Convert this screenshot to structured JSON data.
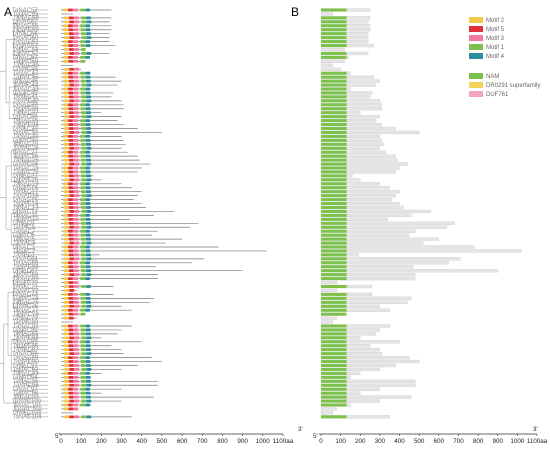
{
  "panels": {
    "a": "A",
    "b": "B"
  },
  "axis": {
    "ticks": [
      0,
      100,
      200,
      300,
      400,
      500,
      600,
      700,
      800,
      900,
      1000,
      1100
    ],
    "unit": "aa",
    "start_label": "5'",
    "end_label": "3'"
  },
  "legend_motifs": [
    {
      "name": "Motif 2",
      "color": "#f5c84a"
    },
    {
      "name": "Motif 5",
      "color": "#e0303d"
    },
    {
      "name": "Motif 3",
      "color": "#f27aa0"
    },
    {
      "name": "Motif 1",
      "color": "#7cc24a"
    },
    {
      "name": "Motif 4",
      "color": "#2c8fa0"
    }
  ],
  "legend_domains": [
    {
      "name": "NAM",
      "color": "#7cc24a"
    },
    {
      "name": "DR0291 superfamily",
      "color": "#f5d35a"
    },
    {
      "name": "DUF761",
      "color": "#f6a2c2"
    }
  ],
  "genes": [
    "TaNAC57",
    "TaNAC63",
    "TaNAC58",
    "TaNAC62",
    "TaNAC55",
    "TaNAC59",
    "TaNAC56",
    "TaNAC60",
    "TaNAC61",
    "TaNAC53",
    "TaNAC54",
    "TaNAC52",
    "TaNAC51",
    "TaNAC50",
    "TaNAC49",
    "TaNAC48",
    "TaNAC47",
    "TaNAC45",
    "TaNAC46",
    "TaNAC44",
    "TaNAC43",
    "TaNAC42",
    "TaNAC41",
    "TaNAC40",
    "TaNAC39",
    "TaNAC38",
    "TaNAC37",
    "TaNAC36",
    "TaNAC35",
    "TaNAC34",
    "TaNAC33",
    "TaNAC32",
    "TaNAC31",
    "TaNAC30",
    "TaNAC29",
    "TaNAC28",
    "TaNAC27",
    "TaNAC26",
    "TaNAC25",
    "TaNAC24",
    "TaNAC23",
    "TaNAC22",
    "TaNAC21",
    "TaNAC20",
    "TaNAC19",
    "TaNAC18",
    "TaNAC17",
    "TaNAC16",
    "TaNAC15",
    "TaNAC14",
    "TaNAC13",
    "TaNAC12",
    "TaNAC11",
    "TaNAC10",
    "TaNAC9",
    "TaNAC8",
    "TaNAC7",
    "TaNAC6",
    "TaNAC5",
    "TaNAC4",
    "TaNAC3",
    "TaNAC2",
    "TaNAC1",
    "TaNAC64",
    "TaNAC65",
    "TaNAC66",
    "TaNAC67",
    "TaNAC68",
    "TaNAC69",
    "TaNAC70",
    "TaNAC71",
    "TaNAC72",
    "TaNAC73",
    "TaNAC74",
    "TaNAC75",
    "TaNAC76",
    "TaNAC77",
    "TaNAC78",
    "TaNAC79",
    "TaNAC80",
    "TaNAC81",
    "TaNAC82",
    "TaNAC83",
    "TaNAC84",
    "TaNAC85",
    "TaNAC86",
    "TaNAC87",
    "TaNAC88",
    "TaNAC89",
    "TaNAC90",
    "TaNAC91",
    "TaNAC92",
    "TaNAC93",
    "TaNAC94",
    "TaNAC95",
    "TaNAC96",
    "TaNAC97",
    "TaNAC98",
    "TaNAC99",
    "TaNAC100",
    "TaNAC101",
    "TaNAC102",
    "TaNAC103",
    "TaNAC104"
  ],
  "protein_lengths": [
    250,
    60,
    250,
    240,
    250,
    250,
    240,
    240,
    240,
    270,
    120,
    240,
    140,
    120,
    60,
    100,
    150,
    270,
    300,
    280,
    150,
    260,
    250,
    300,
    310,
    310,
    200,
    300,
    280,
    310,
    380,
    500,
    300,
    310,
    320,
    300,
    330,
    380,
    390,
    440,
    400,
    380,
    160,
    200,
    300,
    350,
    400,
    380,
    360,
    400,
    420,
    560,
    460,
    340,
    680,
    640,
    480,
    450,
    600,
    520,
    780,
    1020,
    190,
    710,
    650,
    470,
    900,
    480,
    480,
    80,
    260,
    80,
    260,
    460,
    440,
    300,
    350,
    120,
    80,
    60,
    350,
    300,
    280,
    200,
    400,
    250,
    300,
    310,
    450,
    500,
    380,
    300,
    200,
    150,
    480,
    480,
    300,
    200,
    460,
    300,
    150,
    80,
    60,
    350
  ],
  "nam_spans": [
    [
      0,
      130
    ],
    [
      0,
      0
    ],
    [
      0,
      130
    ],
    [
      0,
      130
    ],
    [
      0,
      130
    ],
    [
      0,
      130
    ],
    [
      0,
      130
    ],
    [
      0,
      130
    ],
    [
      0,
      130
    ],
    [
      0,
      130
    ],
    [
      0,
      0
    ],
    [
      0,
      130
    ],
    [
      0,
      130
    ],
    [
      0,
      0
    ],
    [
      0,
      0
    ],
    [
      0,
      0
    ],
    [
      0,
      130
    ],
    [
      0,
      130
    ],
    [
      0,
      130
    ],
    [
      0,
      130
    ],
    [
      0,
      130
    ],
    [
      0,
      130
    ],
    [
      0,
      130
    ],
    [
      0,
      130
    ],
    [
      0,
      130
    ],
    [
      0,
      130
    ],
    [
      0,
      130
    ],
    [
      0,
      130
    ],
    [
      0,
      130
    ],
    [
      0,
      130
    ],
    [
      0,
      130
    ],
    [
      0,
      130
    ],
    [
      0,
      130
    ],
    [
      0,
      130
    ],
    [
      0,
      130
    ],
    [
      0,
      130
    ],
    [
      0,
      130
    ],
    [
      0,
      130
    ],
    [
      0,
      130
    ],
    [
      0,
      130
    ],
    [
      0,
      130
    ],
    [
      0,
      130
    ],
    [
      0,
      130
    ],
    [
      0,
      130
    ],
    [
      0,
      130
    ],
    [
      0,
      130
    ],
    [
      0,
      130
    ],
    [
      0,
      130
    ],
    [
      0,
      130
    ],
    [
      0,
      130
    ],
    [
      0,
      130
    ],
    [
      0,
      130
    ],
    [
      0,
      130
    ],
    [
      0,
      130
    ],
    [
      0,
      130
    ],
    [
      0,
      130
    ],
    [
      0,
      130
    ],
    [
      0,
      130
    ],
    [
      0,
      130
    ],
    [
      0,
      130
    ],
    [
      0,
      130
    ],
    [
      0,
      130
    ],
    [
      0,
      130
    ],
    [
      0,
      130
    ],
    [
      0,
      130
    ],
    [
      0,
      130
    ],
    [
      0,
      130
    ],
    [
      0,
      130
    ],
    [
      0,
      130
    ],
    [
      0,
      0
    ],
    [
      0,
      130
    ],
    [
      0,
      0
    ],
    [
      0,
      130
    ],
    [
      0,
      130
    ],
    [
      0,
      130
    ],
    [
      0,
      130
    ],
    [
      0,
      130
    ],
    [
      0,
      130
    ],
    [
      0,
      0
    ],
    [
      0,
      0
    ],
    [
      0,
      130
    ],
    [
      0,
      130
    ],
    [
      0,
      130
    ],
    [
      0,
      130
    ],
    [
      0,
      130
    ],
    [
      0,
      130
    ],
    [
      0,
      130
    ],
    [
      0,
      130
    ],
    [
      0,
      130
    ],
    [
      0,
      130
    ],
    [
      0,
      130
    ],
    [
      0,
      130
    ],
    [
      0,
      130
    ],
    [
      0,
      130
    ],
    [
      0,
      130
    ],
    [
      0,
      130
    ],
    [
      0,
      130
    ],
    [
      0,
      130
    ],
    [
      0,
      130
    ],
    [
      0,
      130
    ],
    [
      0,
      130
    ],
    [
      0,
      0
    ],
    [
      0,
      0
    ],
    [
      0,
      130
    ]
  ]
}
